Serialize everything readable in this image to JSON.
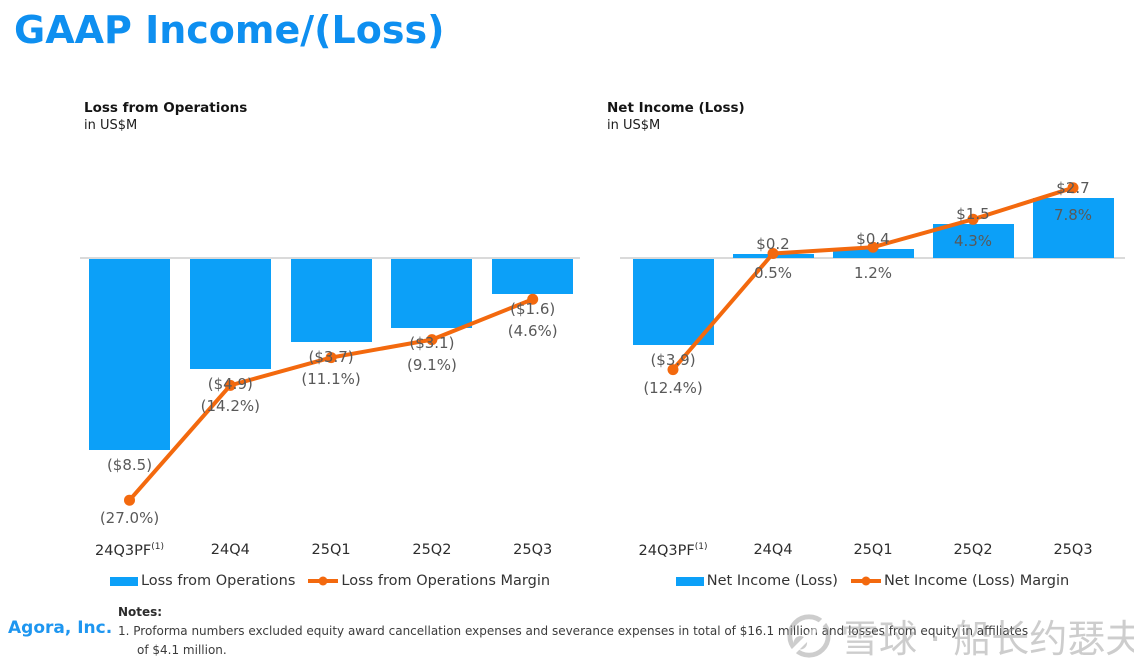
{
  "page": {
    "title": "GAAP Income/(Loss)"
  },
  "colors": {
    "title_blue": "#0e8ff0",
    "bar_blue": "#0ca0f8",
    "line_orange": "#f3690e",
    "brand_blue": "#1e96f0",
    "data_label_gray": "#595959",
    "baseline_gray": "#dadada",
    "watermark_gray": "#9d9d9d"
  },
  "chart_data": [
    {
      "type": "bar+line",
      "title": "Loss from Operations",
      "subtitle": "in US$M",
      "unit": "US$M",
      "grid": false,
      "legend_position": "bottom",
      "categories": [
        {
          "label": "24Q3PF",
          "sup": "(1)"
        },
        {
          "label": "24Q4",
          "sup": ""
        },
        {
          "label": "25Q1",
          "sup": ""
        },
        {
          "label": "25Q2",
          "sup": ""
        },
        {
          "label": "25Q3",
          "sup": ""
        }
      ],
      "series": [
        {
          "name": "Loss from Operations",
          "type": "bar",
          "axis": "US$M",
          "values": [
            -8.5,
            -4.9,
            -3.7,
            -3.1,
            -1.6
          ],
          "labels": [
            "($8.5)",
            "($4.9)",
            "($3.7)",
            "($3.1)",
            "($1.6)"
          ]
        },
        {
          "name": "Loss from Operations Margin",
          "type": "line",
          "axis": "%",
          "values": [
            -27.0,
            -14.2,
            -11.1,
            -9.1,
            -4.6
          ],
          "labels": [
            "(27.0%)",
            "(14.2%)",
            "(11.1%)",
            "(9.1%)",
            "(4.6%)"
          ]
        }
      ],
      "legend": [
        "Loss from Operations",
        "Loss from Operations Margin"
      ],
      "label_pos": {
        "bar": [
          "below-bar",
          "below-bar",
          "below-bar",
          "below-bar",
          "below-bar"
        ],
        "margin": [
          "below-dot",
          "below-value",
          "below-value",
          "below-value",
          "below-value"
        ]
      }
    },
    {
      "type": "bar+line",
      "title": "Net Income (Loss)",
      "subtitle": "in US$M",
      "unit": "US$M",
      "grid": false,
      "legend_position": "bottom",
      "categories": [
        {
          "label": "24Q3PF",
          "sup": "(1)"
        },
        {
          "label": "24Q4",
          "sup": ""
        },
        {
          "label": "25Q1",
          "sup": ""
        },
        {
          "label": "25Q2",
          "sup": ""
        },
        {
          "label": "25Q3",
          "sup": ""
        }
      ],
      "series": [
        {
          "name": "Net Income (Loss)",
          "type": "bar",
          "axis": "US$M",
          "values": [
            -3.9,
            0.2,
            0.4,
            1.5,
            2.7
          ],
          "labels": [
            "($3.9)",
            "$0.2",
            "$0.4",
            "$1.5",
            "$2.7"
          ]
        },
        {
          "name": "Net Income (Loss) Margin",
          "type": "line",
          "axis": "%",
          "values": [
            -12.4,
            0.5,
            1.2,
            4.3,
            7.8
          ],
          "labels": [
            "(12.4%)",
            "0.5%",
            "1.2%",
            "4.3%",
            "7.8%"
          ]
        }
      ],
      "legend": [
        "Net Income (Loss)",
        "Net Income (Loss) Margin"
      ],
      "label_pos": {
        "bar": [
          "below-bar",
          "above-bar",
          "above-bar",
          "above-bar",
          "above-bar"
        ],
        "margin": [
          "below-dot",
          "below-baseline",
          "below-baseline",
          "inside-bar",
          "inside-bar"
        ]
      }
    }
  ],
  "footer": {
    "brand": "Agora, Inc.",
    "notes_label": "Notes:",
    "note_lines": [
      "1. Proforma numbers excluded equity award cancellation expenses and severance expenses in total of $16.1 million and losses from equity in affiliates",
      "of $4.1 million."
    ]
  },
  "watermark": {
    "text": "雪球 · 船长约瑟夫"
  }
}
